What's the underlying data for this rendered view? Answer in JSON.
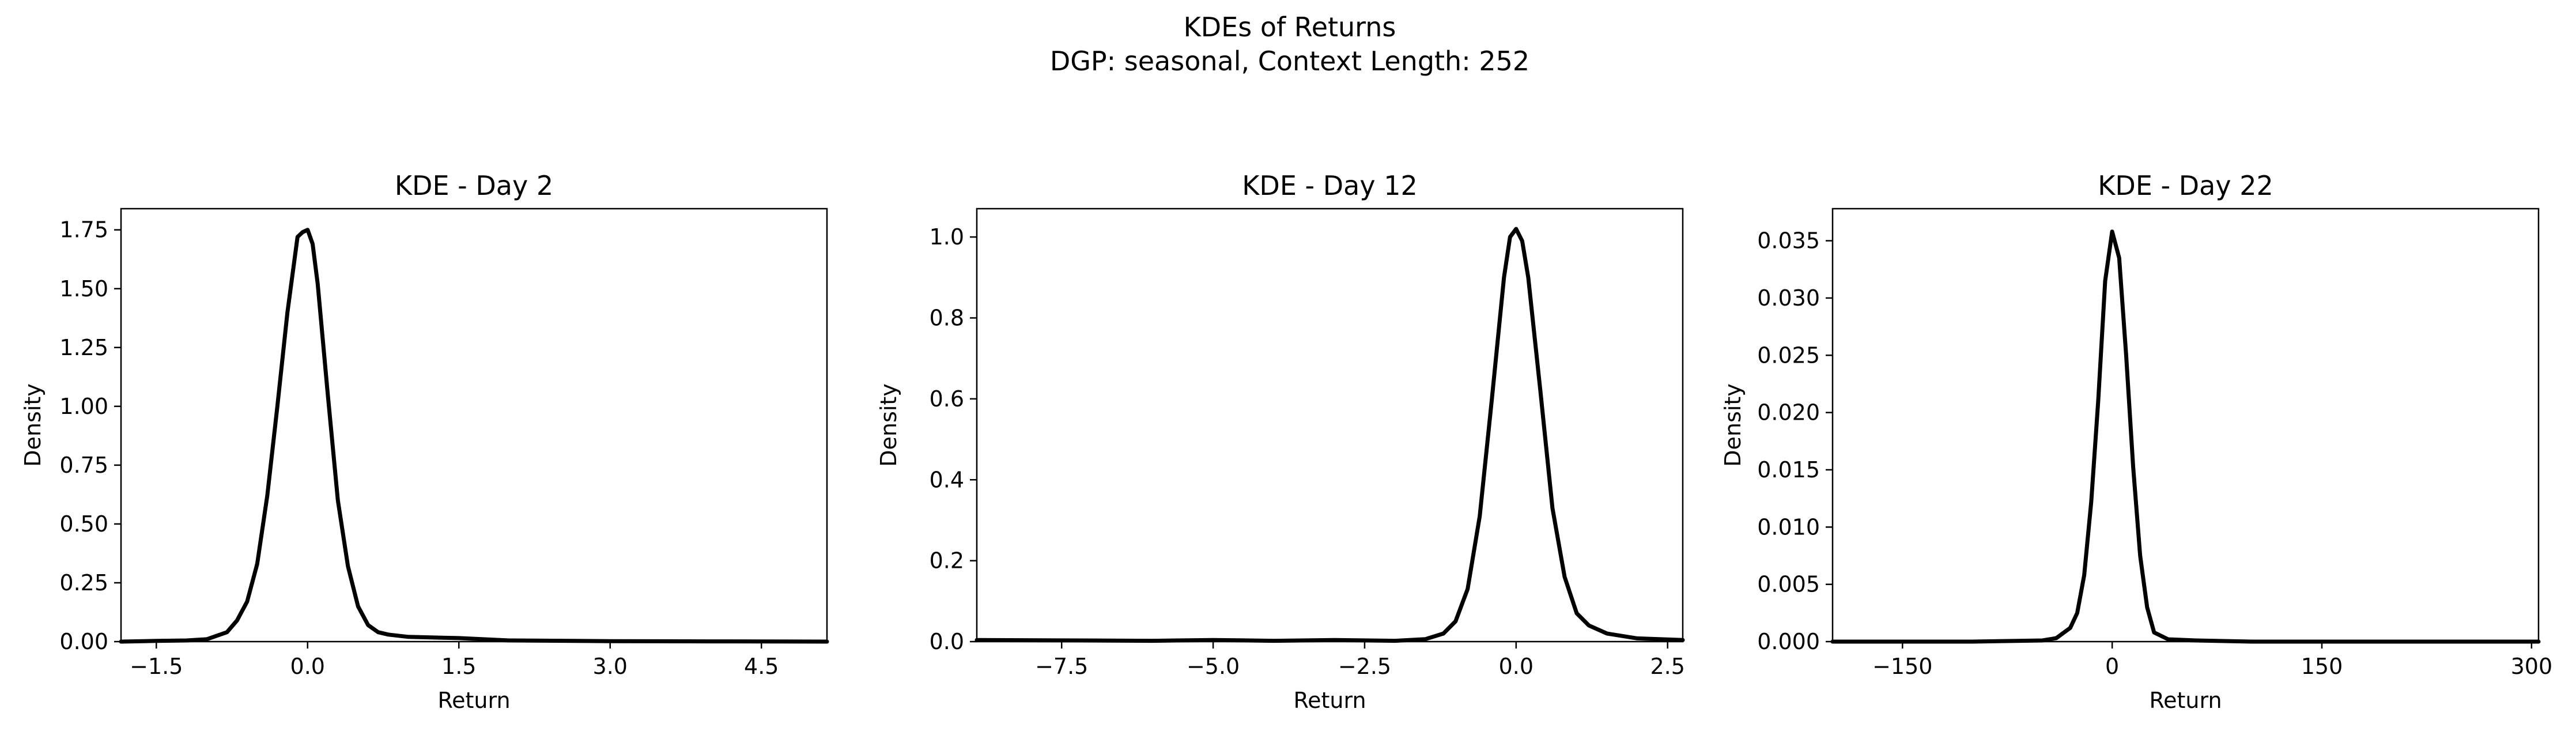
{
  "figure": {
    "title": "KDEs of Returns",
    "subtitle": "DGP: seasonal, Context Length: 252",
    "line_color": "#000000"
  },
  "chart_data": [
    {
      "type": "line",
      "title": "KDE - Day 2",
      "xlabel": "Return",
      "ylabel": "Density",
      "xlim": [
        -1.85,
        5.15
      ],
      "ylim": [
        0,
        1.84
      ],
      "xticks": [
        -1.5,
        0.0,
        1.5,
        3.0,
        4.5
      ],
      "xtick_labels": [
        "−1.5",
        "0.0",
        "1.5",
        "3.0",
        "4.5"
      ],
      "yticks": [
        0,
        0.25,
        0.5,
        0.75,
        1.0,
        1.25,
        1.5,
        1.75
      ],
      "ytick_labels": [
        "0.00",
        "0.25",
        "0.50",
        "0.75",
        "1.00",
        "1.25",
        "1.50",
        "1.75"
      ],
      "series": [
        {
          "x": [
            -1.85,
            -1.5,
            -1.2,
            -1.0,
            -0.8,
            -0.7,
            -0.6,
            -0.5,
            -0.4,
            -0.3,
            -0.2,
            -0.1,
            -0.05,
            0.0,
            0.05,
            0.1,
            0.2,
            0.3,
            0.4,
            0.5,
            0.6,
            0.7,
            0.8,
            1.0,
            1.5,
            2.0,
            3.0,
            4.0,
            5.15
          ],
          "y": [
            0.0,
            0.003,
            0.005,
            0.01,
            0.04,
            0.09,
            0.17,
            0.33,
            0.62,
            1.0,
            1.4,
            1.72,
            1.74,
            1.75,
            1.69,
            1.52,
            1.05,
            0.6,
            0.32,
            0.15,
            0.07,
            0.04,
            0.03,
            0.02,
            0.015,
            0.005,
            0.002,
            0.001,
            0.0
          ]
        }
      ]
    },
    {
      "type": "line",
      "title": "KDE - Day 12",
      "xlabel": "Return",
      "ylabel": "Density",
      "xlim": [
        -8.9,
        2.75
      ],
      "ylim": [
        0,
        1.07
      ],
      "xticks": [
        -7.5,
        -5.0,
        -2.5,
        0.0,
        2.5
      ],
      "xtick_labels": [
        "−7.5",
        "−5.0",
        "−2.5",
        "0.0",
        "2.5"
      ],
      "yticks": [
        0,
        0.2,
        0.4,
        0.6,
        0.8,
        1.0
      ],
      "ytick_labels": [
        "0.0",
        "0.2",
        "0.4",
        "0.6",
        "0.8",
        "1.0"
      ],
      "series": [
        {
          "x": [
            -8.9,
            -7.5,
            -6.0,
            -5.0,
            -4.0,
            -3.0,
            -2.0,
            -1.5,
            -1.2,
            -1.0,
            -0.8,
            -0.6,
            -0.4,
            -0.2,
            -0.1,
            0.0,
            0.1,
            0.2,
            0.4,
            0.6,
            0.8,
            1.0,
            1.2,
            1.5,
            2.0,
            2.75
          ],
          "y": [
            0.004,
            0.003,
            0.002,
            0.004,
            0.002,
            0.004,
            0.002,
            0.006,
            0.02,
            0.05,
            0.13,
            0.31,
            0.6,
            0.9,
            1.0,
            1.02,
            0.99,
            0.9,
            0.62,
            0.33,
            0.16,
            0.07,
            0.04,
            0.02,
            0.008,
            0.004
          ]
        }
      ]
    },
    {
      "type": "line",
      "title": "KDE - Day 22",
      "xlabel": "Return",
      "ylabel": "Density",
      "xlim": [
        -200,
        305
      ],
      "ylim": [
        0,
        0.0378
      ],
      "xticks": [
        -150,
        0,
        150,
        300
      ],
      "xtick_labels": [
        "−150",
        "0",
        "150",
        "300"
      ],
      "yticks": [
        0,
        0.005,
        0.01,
        0.015,
        0.02,
        0.025,
        0.03,
        0.035
      ],
      "ytick_labels": [
        "0.000",
        "0.005",
        "0.010",
        "0.015",
        "0.020",
        "0.025",
        "0.030",
        "0.035"
      ],
      "series": [
        {
          "x": [
            -200,
            -100,
            -50,
            -40,
            -30,
            -25,
            -20,
            -15,
            -10,
            -5,
            0,
            5,
            10,
            15,
            20,
            25,
            30,
            40,
            60,
            100,
            200,
            305
          ],
          "y": [
            0.0,
            0.0,
            0.0001,
            0.0003,
            0.0012,
            0.0025,
            0.0058,
            0.0122,
            0.021,
            0.0315,
            0.0358,
            0.0335,
            0.025,
            0.0153,
            0.0075,
            0.003,
            0.0008,
            0.0002,
            0.0001,
            0.0,
            0.0,
            0.0
          ]
        }
      ]
    }
  ]
}
